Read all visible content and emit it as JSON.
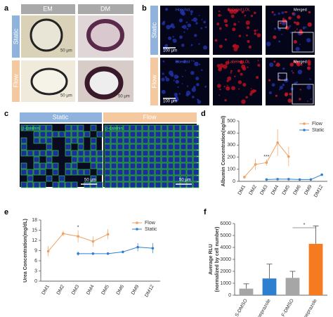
{
  "figure": {
    "panel_labels": [
      "a",
      "b",
      "c",
      "d",
      "e",
      "f"
    ],
    "a": {
      "headers": [
        "EM",
        "DM"
      ],
      "rows": [
        "Static",
        "Flow"
      ],
      "scale_bars": [
        "50 μm",
        "50 μm",
        "50 μm"
      ]
    },
    "b": {
      "rows": [
        "Static",
        "Flow"
      ],
      "channels": [
        "Hoechst",
        "Labeled LDL",
        "Merged",
        "Hoechst",
        "Labeled LDL",
        "Merged"
      ],
      "scale_bars": [
        "100 μm",
        "100 μm"
      ]
    },
    "c": {
      "headers": [
        "Static",
        "Flow"
      ],
      "stain": [
        "β-catenin",
        "β-catenin"
      ],
      "scale_bars": [
        "50 μm",
        "50 μm"
      ]
    }
  },
  "chart_data": [
    {
      "type": "line",
      "y_label": "Albumin Concentration(ng/ml)",
      "categories": [
        "DM1",
        "DM2",
        "DM3",
        "DM4",
        "DM5",
        "DM6",
        "DM9",
        "DM12"
      ],
      "series": [
        {
          "name": "Flow",
          "color": "#f0a060",
          "values": [
            35,
            140,
            155,
            320,
            205,
            null,
            null,
            null
          ],
          "errors": [
            8,
            45,
            25,
            110,
            80,
            null,
            null,
            null
          ]
        },
        {
          "name": "Static",
          "color": "#2f7fd0",
          "values": [
            null,
            null,
            15,
            18,
            18,
            15,
            15,
            55
          ],
          "errors": [
            null,
            null,
            3,
            3,
            3,
            3,
            3,
            5
          ]
        }
      ],
      "ylim": [
        0,
        500
      ],
      "yticks": [
        0,
        100,
        200,
        300,
        400,
        500
      ],
      "annotations": [
        "***"
      ],
      "legend": "upper right"
    },
    {
      "type": "line",
      "y_label": "Urea Concentration(mg/dL)",
      "categories": [
        "DM1",
        "DM2",
        "DM3",
        "DM4",
        "DM5",
        "DM6",
        "DM9",
        "DM12"
      ],
      "series": [
        {
          "name": "Flow",
          "color": "#f0a060",
          "values": [
            8.8,
            14,
            13.2,
            11.7,
            13.8,
            null,
            null,
            null
          ],
          "errors": [
            1.5,
            0.8,
            1.8,
            1.5,
            1.5,
            null,
            null,
            null
          ]
        },
        {
          "name": "Static",
          "color": "#2f7fd0",
          "values": [
            null,
            null,
            8.1,
            8.1,
            8.1,
            8.6,
            10,
            9.7
          ],
          "errors": [
            null,
            null,
            0.6,
            0.2,
            0.2,
            0.4,
            1.2,
            1.5
          ]
        }
      ],
      "ylim": [
        0,
        18
      ],
      "yticks": [
        0,
        3,
        6,
        9,
        12,
        15,
        18
      ],
      "annotations": [
        "*"
      ],
      "legend": "upper right"
    },
    {
      "type": "bar",
      "y_label": [
        "Average RLU",
        "(normalized by cell number)"
      ],
      "categories": [
        "S-DMSO",
        "S-omeprazole",
        "F-DMSO",
        "F-omeprazole"
      ],
      "values": [
        550,
        1400,
        1450,
        4300
      ],
      "errors": [
        400,
        1200,
        550,
        1500
      ],
      "colors": [
        "#a6a6a6",
        "#2f7fd0",
        "#a6a6a6",
        "#f57a20"
      ],
      "ylim": [
        0,
        6000
      ],
      "yticks": [
        0,
        1000,
        2000,
        3000,
        4000,
        5000,
        6000
      ],
      "annotations": [
        "*"
      ]
    }
  ]
}
